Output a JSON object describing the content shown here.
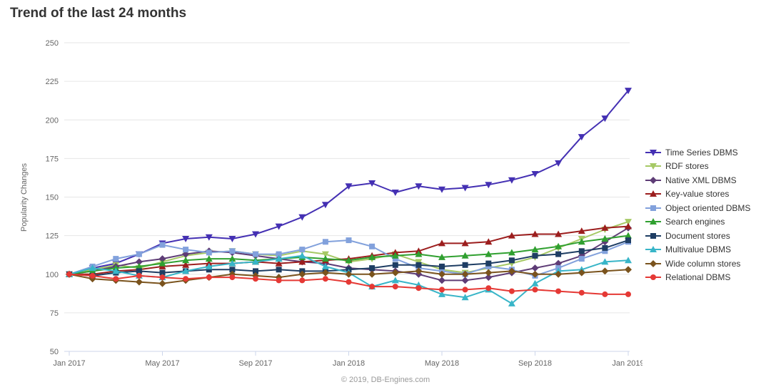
{
  "page": {
    "title": "Trend of the last 24 months",
    "footer": "© 2019, DB-Engines.com"
  },
  "chart_data": {
    "type": "line",
    "title": "Trend of the last 24 months",
    "xlabel": "",
    "ylabel": "Popularity Changes",
    "ylim": [
      50,
      250
    ],
    "yticks": [
      50,
      75,
      100,
      125,
      150,
      175,
      200,
      225,
      250
    ],
    "grid": true,
    "legend_position": "right",
    "x_categories": [
      "Jan 2017",
      "Feb 2017",
      "Mar 2017",
      "Apr 2017",
      "May 2017",
      "Jun 2017",
      "Jul 2017",
      "Aug 2017",
      "Sep 2017",
      "Oct 2017",
      "Nov 2017",
      "Dec 2017",
      "Jan 2018",
      "Feb 2018",
      "Mar 2018",
      "Apr 2018",
      "May 2018",
      "Jun 2018",
      "Jul 2018",
      "Aug 2018",
      "Sep 2018",
      "Oct 2018",
      "Nov 2018",
      "Dec 2018",
      "Jan 2019"
    ],
    "xticks": [
      {
        "index": 0,
        "label": "Jan 2017"
      },
      {
        "index": 4,
        "label": "May 2017"
      },
      {
        "index": 8,
        "label": "Sep 2017"
      },
      {
        "index": 12,
        "label": "Jan 2018"
      },
      {
        "index": 16,
        "label": "May 2018"
      },
      {
        "index": 20,
        "label": "Sep 2018"
      },
      {
        "index": 24,
        "label": "Jan 2019"
      }
    ],
    "series": [
      {
        "name": "Time Series DBMS",
        "color": "#4430b3",
        "marker": "triangle-down",
        "values": [
          100,
          104,
          107,
          113,
          120,
          123,
          124,
          123,
          126,
          131,
          137,
          145,
          157,
          159,
          153,
          157,
          155,
          156,
          158,
          161,
          165,
          172,
          189,
          201,
          219
        ]
      },
      {
        "name": "RDF stores",
        "color": "#a6c965",
        "marker": "triangle-down",
        "values": [
          100,
          103,
          106,
          104,
          108,
          112,
          114,
          115,
          113,
          112,
          115,
          113,
          108,
          110,
          113,
          108,
          103,
          101,
          104,
          107,
          111,
          117,
          123,
          129,
          134
        ]
      },
      {
        "name": "Native XML DBMS",
        "color": "#5e3c76",
        "marker": "diamond",
        "values": [
          100,
          102,
          105,
          108,
          110,
          113,
          115,
          114,
          112,
          110,
          108,
          107,
          104,
          103,
          102,
          100,
          96,
          96,
          98,
          101,
          104,
          107,
          112,
          121,
          130
        ]
      },
      {
        "name": "Key-value stores",
        "color": "#9c1e1e",
        "marker": "triangle",
        "values": [
          100,
          100,
          102,
          103,
          105,
          106,
          107,
          107,
          108,
          107,
          108,
          109,
          110,
          112,
          114,
          115,
          120,
          120,
          121,
          125,
          126,
          126,
          128,
          130,
          131
        ]
      },
      {
        "name": "Object oriented DBMS",
        "color": "#82a1dc",
        "marker": "square",
        "values": [
          100,
          105,
          110,
          113,
          119,
          116,
          114,
          115,
          113,
          113,
          116,
          121,
          122,
          118,
          110,
          104,
          102,
          100,
          105,
          103,
          99,
          104,
          110,
          115,
          121
        ]
      },
      {
        "name": "Search engines",
        "color": "#30a030",
        "marker": "triangle",
        "values": [
          100,
          102,
          104,
          105,
          107,
          109,
          110,
          110,
          109,
          110,
          111,
          110,
          109,
          111,
          112,
          113,
          111,
          112,
          113,
          114,
          116,
          118,
          121,
          123,
          125
        ]
      },
      {
        "name": "Document stores",
        "color": "#1e3d63",
        "marker": "square",
        "values": [
          100,
          99,
          101,
          102,
          101,
          102,
          103,
          103,
          102,
          103,
          102,
          102,
          103,
          104,
          106,
          106,
          105,
          106,
          107,
          109,
          112,
          113,
          115,
          117,
          122
        ]
      },
      {
        "name": "Multivalue DBMS",
        "color": "#38b5c8",
        "marker": "triangle",
        "values": [
          100,
          104,
          102,
          99,
          98,
          102,
          105,
          107,
          108,
          110,
          112,
          105,
          101,
          92,
          96,
          93,
          87,
          85,
          90,
          81,
          94,
          102,
          103,
          108,
          109
        ]
      },
      {
        "name": "Wide column stores",
        "color": "#7a531d",
        "marker": "diamond",
        "values": [
          100,
          97,
          96,
          95,
          94,
          96,
          98,
          100,
          99,
          98,
          100,
          101,
          100,
          100,
          101,
          102,
          100,
          100,
          101,
          102,
          100,
          100,
          101,
          102,
          103
        ]
      },
      {
        "name": "Relational DBMS",
        "color": "#e53935",
        "marker": "circle",
        "values": [
          100,
          99,
          97,
          99,
          98,
          97,
          98,
          98,
          97,
          96,
          96,
          97,
          95,
          92,
          92,
          91,
          90,
          90,
          91,
          89,
          90,
          89,
          88,
          87,
          87
        ]
      }
    ]
  }
}
